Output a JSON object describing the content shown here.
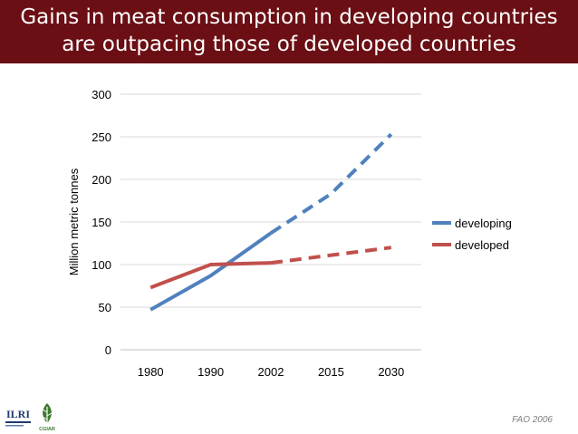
{
  "slide": {
    "title_line1": "Gains in meat consumption in developing countries",
    "title_line2": "are outpacing those of developed countries",
    "source": "FAO 2006",
    "logos": {
      "ilri": "ILRI",
      "cgiar": "CGIAR"
    }
  },
  "colors": {
    "title_bg": "#6b0f14",
    "developing": "#4f81bd",
    "developed": "#c0504d",
    "grid": "#d9d9d9"
  },
  "chart_data": {
    "type": "line",
    "title": "",
    "xlabel": "",
    "ylabel": "Million metric tonnes",
    "categories": [
      "1980",
      "1990",
      "2002",
      "2015",
      "2030"
    ],
    "ylim": [
      0,
      300
    ],
    "yticks": [
      0,
      50,
      100,
      150,
      200,
      250,
      300
    ],
    "grid": true,
    "legend": "right",
    "series": [
      {
        "name": "developing",
        "values": [
          47,
          87,
          137,
          183,
          253
        ],
        "projected_from_index": 2
      },
      {
        "name": "developed",
        "values": [
          73,
          100,
          102,
          111,
          120
        ],
        "projected_from_index": 2
      }
    ]
  }
}
